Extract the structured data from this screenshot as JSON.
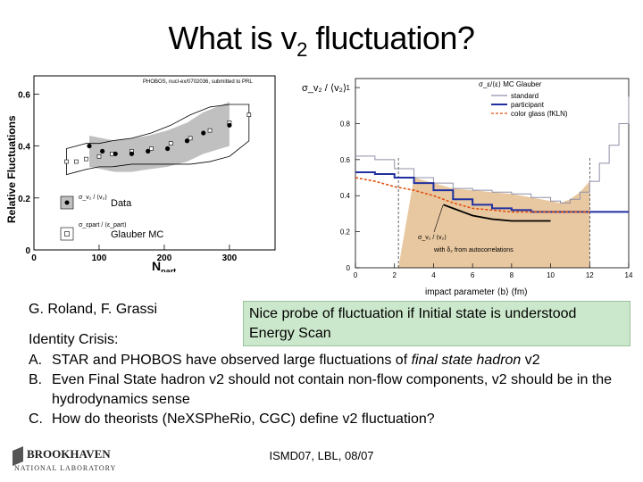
{
  "title": {
    "main": "What is v",
    "sub": "2",
    "tail": " fluctuation?"
  },
  "left_plot": {
    "header": "PHOBOS, nucl-ex/0702036, submitted to PRL",
    "ylabel": "Relative Fluctuations",
    "xlabel": "N",
    "xlabel_sub": "part",
    "yticks": [
      "0",
      "0.2",
      "0.4",
      "0.6"
    ],
    "xticks": [
      "0",
      "100",
      "200",
      "300"
    ],
    "legend": [
      {
        "label": "Data",
        "color": "#c0c0c0"
      },
      {
        "label": "Glauber MC",
        "color": "#ffffff"
      }
    ],
    "legend_symbol_1": "σ_v₂ / ⟨v₂⟩",
    "legend_symbol_2": "σ_εpart / ⟨ε_part⟩",
    "chart_data": {
      "type": "scatter",
      "series": [
        {
          "name": "Data",
          "x": [
            85,
            105,
            125,
            150,
            175,
            205,
            235,
            260,
            300
          ],
          "y": [
            0.4,
            0.38,
            0.37,
            0.37,
            0.38,
            0.39,
            0.42,
            0.45,
            0.48
          ],
          "band_low": [
            0.32,
            0.31,
            0.3,
            0.3,
            0.31,
            0.32,
            0.34,
            0.37,
            0.4
          ],
          "band_high": [
            0.44,
            0.43,
            0.42,
            0.43,
            0.44,
            0.46,
            0.49,
            0.53,
            0.57
          ]
        },
        {
          "name": "Glauber MC",
          "x": [
            50,
            65,
            80,
            100,
            120,
            150,
            180,
            210,
            240,
            270,
            300,
            330
          ],
          "y": [
            0.34,
            0.34,
            0.35,
            0.36,
            0.37,
            0.38,
            0.39,
            0.41,
            0.43,
            0.46,
            0.49,
            0.52
          ],
          "band_low": [
            0.29,
            0.3,
            0.31,
            0.32,
            0.32,
            0.33,
            0.33,
            0.33,
            0.33,
            0.34,
            0.36,
            0.42
          ],
          "band_high": [
            0.39,
            0.4,
            0.41,
            0.41,
            0.42,
            0.43,
            0.45,
            0.48,
            0.52,
            0.55,
            0.56,
            0.56
          ]
        }
      ],
      "xlim": [
        0,
        370
      ],
      "ylim": [
        0,
        0.67
      ]
    }
  },
  "right_plot": {
    "ylabel_top": "σ_v₂ / ⟨v₂⟩",
    "legend_title": "σ_ε/⟨ε⟩ MC Glauber",
    "legend": [
      {
        "label": "standard",
        "color": "#9090a8"
      },
      {
        "label": "participant",
        "color": "#2030a0"
      },
      {
        "label": "color glass (fKLN)",
        "color": "#e05010"
      }
    ],
    "annotation": "with δ₂ from autocorrelations",
    "annotation_symbol": "σ_v₂ / ⟨v₂⟩",
    "xlabel": "impact parameter ⟨b⟩ (fm)",
    "yticks": [
      "0",
      "0.2",
      "0.4",
      "0.6",
      "0.8",
      "1"
    ],
    "xticks": [
      "0",
      "2",
      "4",
      "6",
      "8",
      "10",
      "12",
      "14"
    ],
    "shade_color": "#e8c8a0",
    "chart_data": {
      "type": "line",
      "series": [
        {
          "name": "standard",
          "x": [
            0,
            1,
            2,
            3,
            4,
            5,
            6,
            7,
            8,
            9,
            10,
            10.5,
            11,
            11.5,
            12,
            12.5,
            13,
            13.5,
            14
          ],
          "y": [
            0.62,
            0.6,
            0.55,
            0.5,
            0.47,
            0.44,
            0.43,
            0.42,
            0.41,
            0.39,
            0.37,
            0.36,
            0.38,
            0.42,
            0.48,
            0.58,
            0.68,
            0.8,
            0.95
          ]
        },
        {
          "name": "participant",
          "x": [
            0,
            1,
            2,
            3,
            4,
            5,
            6,
            7,
            8,
            9,
            10,
            11,
            12,
            13,
            14
          ],
          "y": [
            0.53,
            0.52,
            0.5,
            0.47,
            0.43,
            0.38,
            0.35,
            0.33,
            0.32,
            0.31,
            0.31,
            0.31,
            0.31,
            0.31,
            0.31
          ]
        },
        {
          "name": "color glass (fKLN)",
          "x": [
            0,
            1,
            2,
            3,
            4,
            5,
            6,
            7,
            8,
            9,
            10,
            11,
            12
          ],
          "y": [
            0.5,
            0.48,
            0.45,
            0.43,
            0.4,
            0.36,
            0.33,
            0.32,
            0.31,
            0.31,
            0.31,
            0.31,
            0.31
          ]
        },
        {
          "name": "σ_v₂/⟨v₂⟩ with δ₂ from autocorrelations",
          "x": [
            4.5,
            5,
            5.5,
            6,
            7,
            8,
            9,
            10
          ],
          "y": [
            0.35,
            0.33,
            0.31,
            0.29,
            0.27,
            0.26,
            0.26,
            0.26
          ]
        }
      ],
      "shade_range_x": [
        2.2,
        12
      ],
      "xlim": [
        0,
        14
      ],
      "ylim": [
        0,
        1.05
      ]
    }
  },
  "credit": "G. Roland, F. Grassi",
  "callout": {
    "line1": "Nice probe of fluctuation if Initial state is understood",
    "line2": "Energy Scan"
  },
  "crisis_heading": "Identity Crisis:",
  "items": [
    {
      "label": "A.",
      "pre": "STAR and PHOBOS have observed large fluctuations of ",
      "em": "final state hadron",
      "post": " v2"
    },
    {
      "label": "B.",
      "pre": "Even Final State hadron v2 should not contain non-flow components, v2 should be in the hydrodynamics sense",
      "em": "",
      "post": ""
    },
    {
      "label": "C.",
      "pre": "How do theorists (NeXSPheRio, CGC) define v2 fluctuation?",
      "em": "",
      "post": ""
    }
  ],
  "footer": "ISMD07, LBL, 08/07",
  "logo": {
    "line1": "BROOKHAVEN",
    "line2": "NATIONAL LABORATORY"
  }
}
